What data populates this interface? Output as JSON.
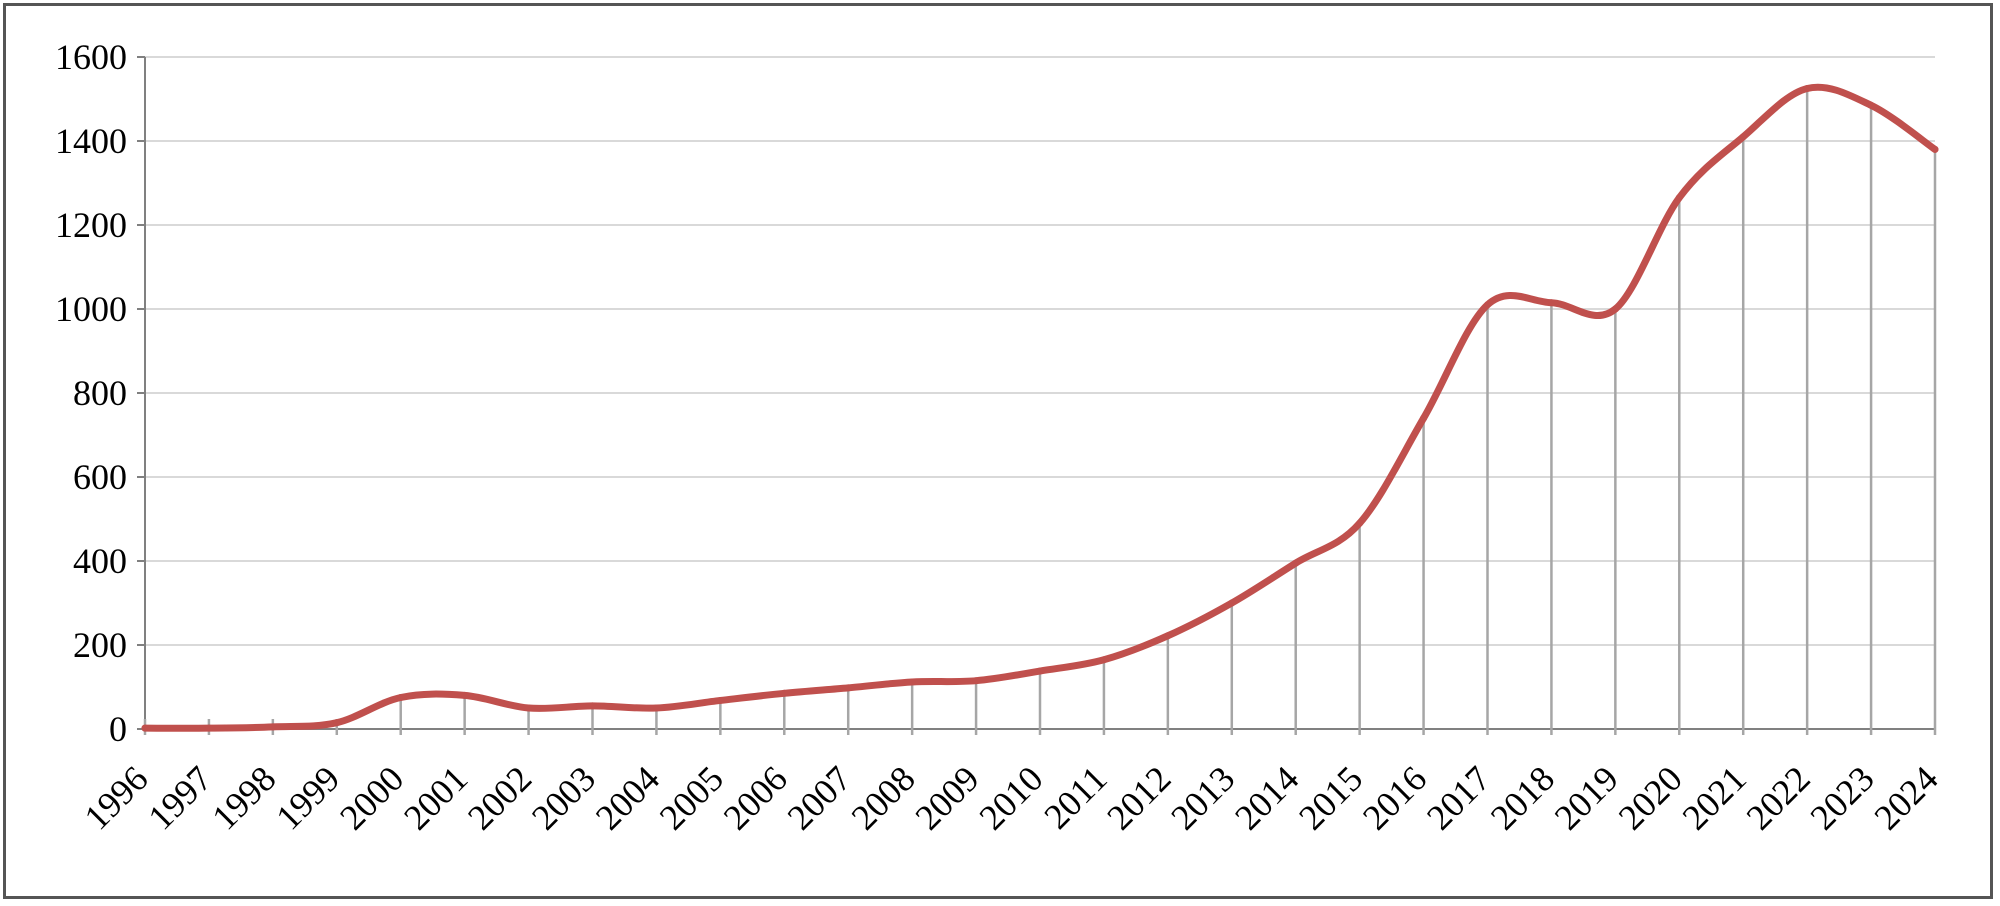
{
  "chart_data": {
    "type": "line",
    "title": "",
    "xlabel": "",
    "ylabel": "",
    "x": [
      "1996",
      "1997",
      "1998",
      "1999",
      "2000",
      "2001",
      "2002",
      "2003",
      "2004",
      "2005",
      "2006",
      "2007",
      "2008",
      "2009",
      "2010",
      "2011",
      "2012",
      "2013",
      "2014",
      "2015",
      "2016",
      "2017",
      "2018",
      "2019",
      "2020",
      "2021",
      "2022",
      "2023",
      "2024"
    ],
    "series": [
      {
        "values": [
          2,
          2,
          5,
          15,
          75,
          80,
          50,
          55,
          50,
          68,
          85,
          98,
          112,
          115,
          138,
          165,
          222,
          300,
          395,
          490,
          740,
          1010,
          1015,
          1000,
          1265,
          1410,
          1525,
          1485,
          1380
        ]
      }
    ],
    "ylim": [
      0,
      1600
    ],
    "yticks": [
      "0",
      "200",
      "400",
      "600",
      "800",
      "1000",
      "1200",
      "1400",
      "1600"
    ],
    "grid": true,
    "drop_lines": true,
    "colors": {
      "line": "#c0504d",
      "grid": "#d9d9d9",
      "drop_line": "#a6a6a6",
      "axis": "#808080"
    }
  }
}
